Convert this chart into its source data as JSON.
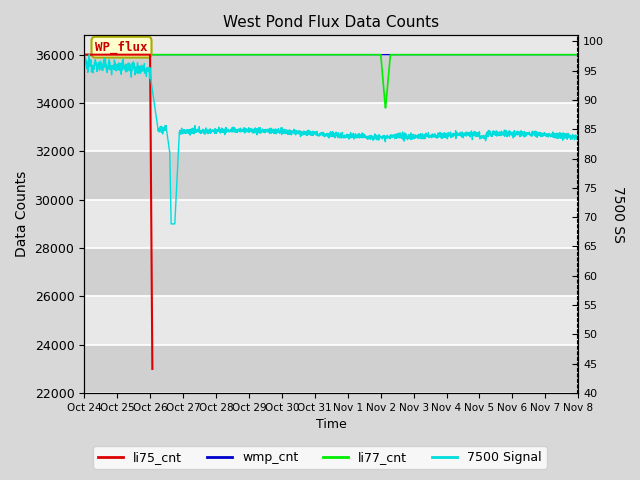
{
  "title": "West Pond Flux Data Counts",
  "ylabel_left": "Data Counts",
  "ylabel_right": "7500 SS",
  "xlabel": "Time",
  "ylim_left": [
    22000,
    36800
  ],
  "ylim_right": [
    40,
    101
  ],
  "yticks_left": [
    22000,
    24000,
    26000,
    28000,
    30000,
    32000,
    34000,
    36000
  ],
  "yticks_right": [
    40,
    45,
    50,
    55,
    60,
    65,
    70,
    75,
    80,
    85,
    90,
    95,
    100
  ],
  "bg_color": "#d8d8d8",
  "plot_bg_color": "#d8d8d8",
  "annotation_box": {
    "text": "WP_flux",
    "facecolor": "#ffffcc",
    "edgecolor": "#aaaa00",
    "textcolor": "#cc0000",
    "fontsize": 9
  },
  "x_tick_labels": [
    "Oct 24",
    "Oct 25",
    "Oct 26",
    "Oct 27",
    "Oct 28",
    "Oct 29",
    "Oct 30",
    "Oct 31",
    "Nov 1",
    "Nov 2",
    "Nov 3",
    "Nov 4",
    "Nov 5",
    "Nov 6",
    "Nov 7",
    "Nov 8"
  ],
  "colors": {
    "li75": "#dd0000",
    "wmp": "#0000cc",
    "li77": "#00ee00",
    "signal7500": "#00dddd"
  }
}
